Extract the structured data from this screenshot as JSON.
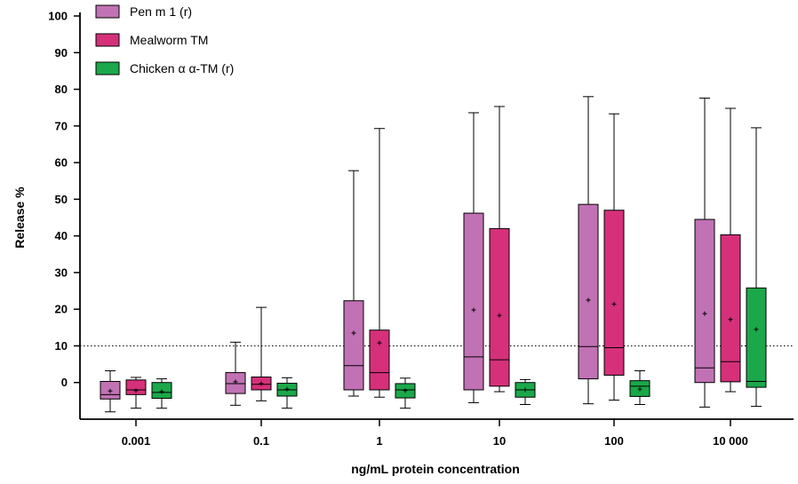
{
  "chart_data": {
    "type": "box",
    "xlabel": "ng/mL protein concentration",
    "ylabel": "Release %",
    "ylim": [
      -10,
      100
    ],
    "yticks": [
      0,
      10,
      20,
      30,
      40,
      50,
      60,
      70,
      80,
      90,
      100
    ],
    "y_tick_labels": [
      "0",
      "10",
      "20",
      "30",
      "40",
      "50",
      "60",
      "70",
      "80",
      "90",
      "100"
    ],
    "categories": [
      "0.001",
      "0.1",
      "1",
      "10",
      "100",
      "10 000"
    ],
    "reference_line": 10,
    "legend_position": "top-left",
    "series": [
      {
        "name": "Pen m 1 (r)",
        "color": "#c172b4",
        "boxes": [
          {
            "min": -8,
            "q1": -4.5,
            "median": -3.3,
            "q3": 0.3,
            "max": 3.2,
            "mean": -2.3
          },
          {
            "min": -6.2,
            "q1": -3,
            "median": -0.3,
            "q3": 2.7,
            "max": 11,
            "mean": 0.2
          },
          {
            "min": -3.7,
            "q1": -2,
            "median": 4.6,
            "q3": 22.3,
            "max": 57.8,
            "mean": 13.5
          },
          {
            "min": -5.5,
            "q1": -2,
            "median": 7,
            "q3": 46.2,
            "max": 73.6,
            "mean": 19.8
          },
          {
            "min": -5.8,
            "q1": 1,
            "median": 9.8,
            "q3": 48.6,
            "max": 78,
            "mean": 22.5
          },
          {
            "min": -6.7,
            "q1": 0,
            "median": 4,
            "q3": 44.5,
            "max": 77.6,
            "mean": 18.8
          }
        ]
      },
      {
        "name": "Mealworm TM",
        "color": "#d6307a",
        "boxes": [
          {
            "min": -7,
            "q1": -3.3,
            "median": -2,
            "q3": 0.7,
            "max": 1.4,
            "mean": -2.2
          },
          {
            "min": -5,
            "q1": -2,
            "median": -0.5,
            "q3": 1.5,
            "max": 20.5,
            "mean": -0.3
          },
          {
            "min": -4,
            "q1": -2,
            "median": 2.7,
            "q3": 14.3,
            "max": 69.3,
            "mean": 10.8
          },
          {
            "min": -2.5,
            "q1": -1,
            "median": 6.2,
            "q3": 42,
            "max": 75.3,
            "mean": 18.3
          },
          {
            "min": -4.8,
            "q1": 2,
            "median": 9.5,
            "q3": 47,
            "max": 73.3,
            "mean": 21.4
          },
          {
            "min": -2.5,
            "q1": 0.2,
            "median": 5.7,
            "q3": 40.3,
            "max": 74.8,
            "mean": 17.2
          }
        ]
      },
      {
        "name": "Chicken α α-TM (r)",
        "color": "#1ba84a",
        "boxes": [
          {
            "min": -7,
            "q1": -4.3,
            "median": -2.7,
            "q3": 0,
            "max": 1,
            "mean": -2.5
          },
          {
            "min": -7,
            "q1": -3.7,
            "median": -2,
            "q3": -0.2,
            "max": 1.3,
            "mean": -1.8
          },
          {
            "min": -7,
            "q1": -4.2,
            "median": -2,
            "q3": -0.3,
            "max": 1.2,
            "mean": -2.2
          },
          {
            "min": -6,
            "q1": -4,
            "median": -2,
            "q3": 0,
            "max": 0.8,
            "mean": -2
          },
          {
            "min": -6,
            "q1": -3.8,
            "median": -1,
            "q3": 0.5,
            "max": 3.2,
            "mean": -1.8
          },
          {
            "min": -6.5,
            "q1": -1.3,
            "median": 0.3,
            "q3": 25.8,
            "max": 69.5,
            "mean": 14.5
          }
        ]
      }
    ]
  }
}
